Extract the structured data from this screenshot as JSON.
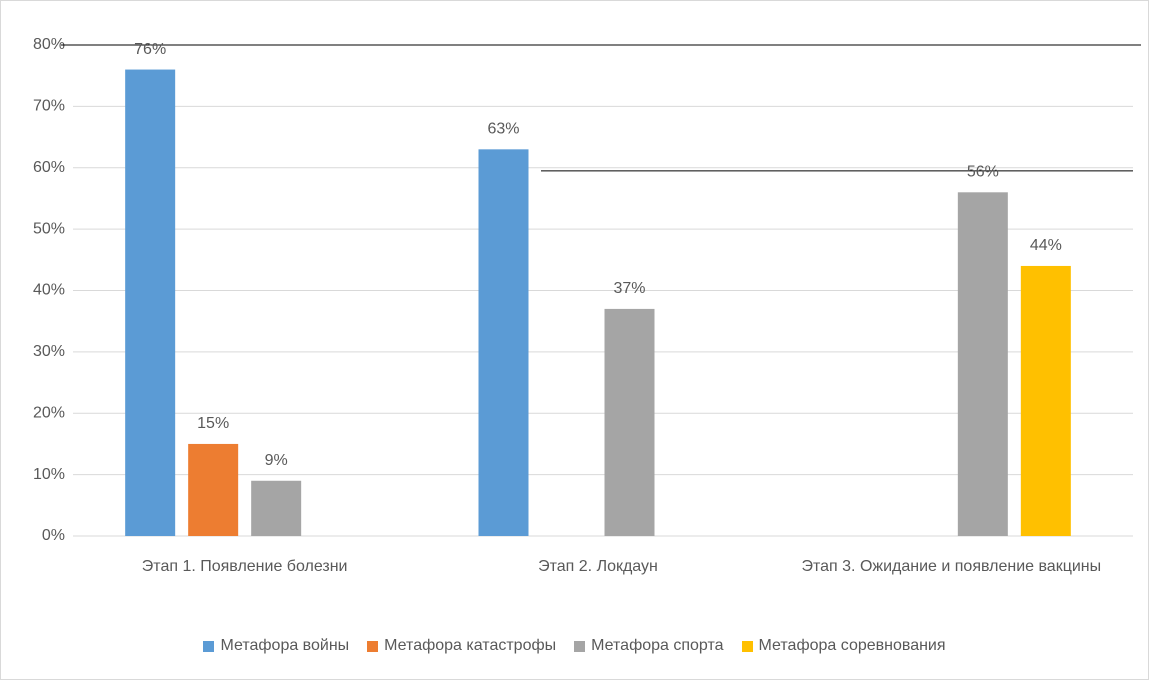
{
  "chart_data": {
    "type": "bar",
    "categories": [
      "Этап 1. Появление болезни",
      "Этап 2. Локдаун",
      "Этап 3. Ожидание и появление вакцины"
    ],
    "series": [
      {
        "name": "Метафора войны",
        "color": "#5b9bd5",
        "values": [
          76,
          63,
          null
        ],
        "value_labels": [
          "76%",
          "63%",
          null
        ]
      },
      {
        "name": "Метафора катастрофы",
        "color": "#ed7d31",
        "values": [
          15,
          null,
          null
        ],
        "value_labels": [
          "15%",
          null,
          null
        ]
      },
      {
        "name": "Метафора спорта",
        "color": "#a5a5a5",
        "values": [
          9,
          37,
          56
        ],
        "value_labels": [
          "9%",
          "37%",
          "56%"
        ]
      },
      {
        "name": "Метафора соревнования",
        "color": "#ffc000",
        "values": [
          null,
          null,
          44
        ],
        "value_labels": [
          null,
          null,
          "44%"
        ]
      }
    ],
    "ylim": [
      0,
      80
    ],
    "yticks": [
      {
        "value": 0,
        "label": "0%"
      },
      {
        "value": 10,
        "label": "10%"
      },
      {
        "value": 20,
        "label": "20%"
      },
      {
        "value": 30,
        "label": "30%"
      },
      {
        "value": 40,
        "label": "40%"
      },
      {
        "value": 50,
        "label": "50%"
      },
      {
        "value": 60,
        "label": "60%"
      },
      {
        "value": 70,
        "label": "70%"
      },
      {
        "value": 80,
        "label": "80%"
      }
    ],
    "grid": true
  }
}
